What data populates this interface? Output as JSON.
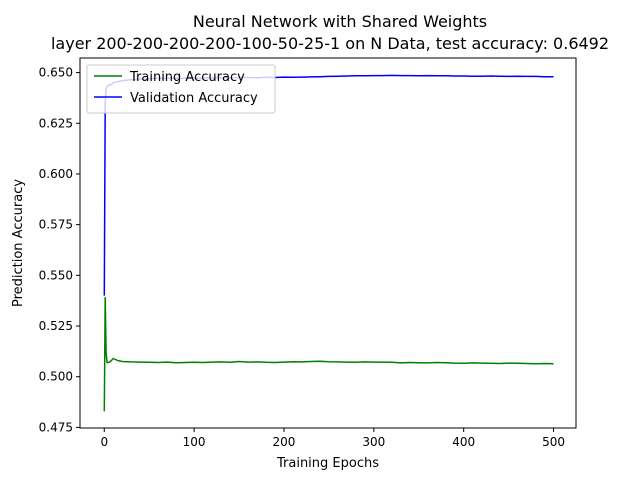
{
  "chart_data": {
    "type": "line",
    "title": "Neural Network with Shared Weights",
    "subtitle": "layer 200-200-200-200-100-50-25-1 on N Data, test accuracy: 0.6492",
    "xlabel": "Training Epochs",
    "ylabel": "Prediction Accuracy",
    "xlim": [
      -27,
      525
    ],
    "ylim": [
      0.4747,
      0.6572
    ],
    "xticks": [
      0,
      100,
      200,
      300,
      400,
      500
    ],
    "xtick_labels": [
      "0",
      "100",
      "200",
      "300",
      "400",
      "500"
    ],
    "yticks": [
      0.475,
      0.5,
      0.525,
      0.55,
      0.575,
      0.6,
      0.625,
      0.65
    ],
    "ytick_labels": [
      "0.475",
      "0.500",
      "0.525",
      "0.550",
      "0.575",
      "0.600",
      "0.625",
      "0.650"
    ],
    "grid": false,
    "legend_position": "top-left",
    "series": [
      {
        "name": "Training Accuracy",
        "color": "#008000",
        "x": [
          0,
          1,
          2,
          3,
          5,
          8,
          10,
          15,
          20,
          30,
          40,
          50,
          60,
          70,
          80,
          90,
          100,
          110,
          120,
          130,
          140,
          150,
          160,
          170,
          180,
          190,
          200,
          210,
          220,
          230,
          240,
          250,
          260,
          270,
          280,
          290,
          300,
          310,
          320,
          330,
          340,
          350,
          360,
          370,
          380,
          390,
          400,
          410,
          420,
          430,
          440,
          450,
          460,
          470,
          480,
          490,
          500
        ],
        "values": [
          0.483,
          0.539,
          0.512,
          0.507,
          0.507,
          0.508,
          0.509,
          0.508,
          0.5075,
          0.5073,
          0.5072,
          0.5071,
          0.507,
          0.5072,
          0.5069,
          0.507,
          0.5071,
          0.507,
          0.5072,
          0.5073,
          0.5071,
          0.5075,
          0.5072,
          0.5073,
          0.5071,
          0.507,
          0.5072,
          0.5074,
          0.5073,
          0.5075,
          0.5076,
          0.5074,
          0.5073,
          0.5072,
          0.5071,
          0.5073,
          0.5072,
          0.5072,
          0.5071,
          0.5068,
          0.507,
          0.5069,
          0.5068,
          0.507,
          0.5069,
          0.5067,
          0.5066,
          0.5068,
          0.5067,
          0.5066,
          0.5065,
          0.5067,
          0.5066,
          0.5065,
          0.5064,
          0.5065,
          0.5064
        ]
      },
      {
        "name": "Validation Accuracy",
        "color": "#0000ff",
        "x": [
          0,
          1,
          2,
          3,
          5,
          8,
          10,
          15,
          20,
          30,
          40,
          50,
          60,
          70,
          80,
          90,
          100,
          110,
          120,
          130,
          140,
          150,
          160,
          170,
          180,
          190,
          200,
          210,
          220,
          230,
          240,
          250,
          260,
          270,
          280,
          290,
          300,
          310,
          320,
          330,
          340,
          350,
          360,
          370,
          380,
          390,
          400,
          410,
          420,
          430,
          440,
          450,
          460,
          470,
          480,
          490,
          500
        ],
        "values": [
          0.54,
          0.635,
          0.642,
          0.643,
          0.644,
          0.644,
          0.645,
          0.6455,
          0.646,
          0.6465,
          0.6468,
          0.647,
          0.6472,
          0.6472,
          0.6473,
          0.6472,
          0.6474,
          0.6473,
          0.6475,
          0.6474,
          0.6475,
          0.6476,
          0.6476,
          0.6475,
          0.6477,
          0.6476,
          0.6478,
          0.6477,
          0.6478,
          0.6479,
          0.648,
          0.6481,
          0.6482,
          0.6483,
          0.6484,
          0.6484,
          0.6485,
          0.6485,
          0.6486,
          0.6485,
          0.6485,
          0.6484,
          0.6485,
          0.6484,
          0.6484,
          0.6483,
          0.6483,
          0.6482,
          0.6482,
          0.6483,
          0.6482,
          0.6481,
          0.6482,
          0.6481,
          0.6481,
          0.648,
          0.648
        ]
      }
    ]
  }
}
